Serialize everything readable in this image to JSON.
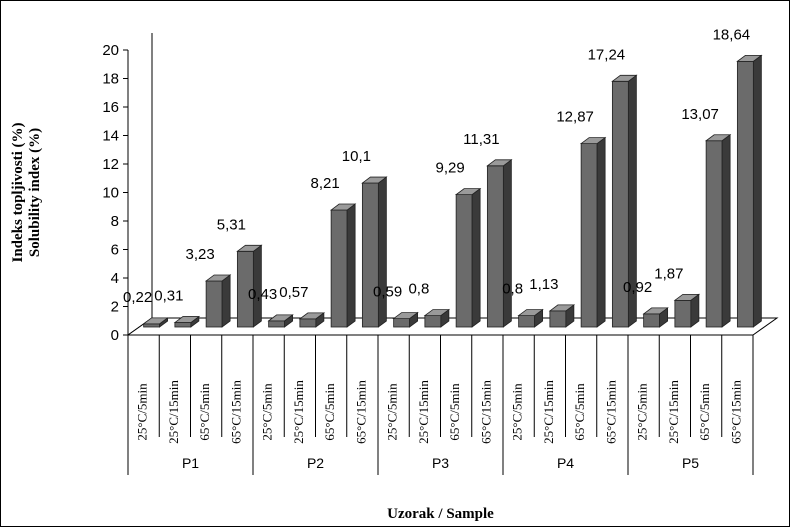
{
  "chart_data": {
    "type": "bar",
    "title": "",
    "ylabel_lines": [
      "Indeks topljivosti (%)",
      "Solubility index (%)"
    ],
    "xlabel": "Uzorak / Sample",
    "ylim": [
      0,
      20
    ],
    "yticks": [
      0,
      2,
      4,
      6,
      8,
      10,
      12,
      14,
      16,
      18,
      20
    ],
    "conditions": [
      "25°C/5min",
      "25°C/15min",
      "65°C/5min",
      "65°C/15min"
    ],
    "groups": [
      {
        "name": "P1",
        "values": [
          0.22,
          0.31,
          3.23,
          5.31
        ],
        "labels": [
          "0,22",
          "0,31",
          "3,23",
          "5,31"
        ]
      },
      {
        "name": "P2",
        "values": [
          0.43,
          0.57,
          8.21,
          10.1
        ],
        "labels": [
          "0,43",
          "0,57",
          "8,21",
          "10,1"
        ]
      },
      {
        "name": "P3",
        "values": [
          0.59,
          0.8,
          9.29,
          11.31
        ],
        "labels": [
          "0,59",
          "0,8",
          "9,29",
          "11,31"
        ]
      },
      {
        "name": "P4",
        "values": [
          0.8,
          1.13,
          12.87,
          17.24
        ],
        "labels": [
          "0,8",
          "1,13",
          "12,87",
          "17,24"
        ]
      },
      {
        "name": "P5",
        "values": [
          0.92,
          1.87,
          13.07,
          18.64
        ],
        "labels": [
          "0,92",
          "1,87",
          "13,07",
          "18,64"
        ]
      }
    ],
    "bar_color": "#6b6b6b",
    "grid": false,
    "legend": "none",
    "style": "3d-bar"
  }
}
